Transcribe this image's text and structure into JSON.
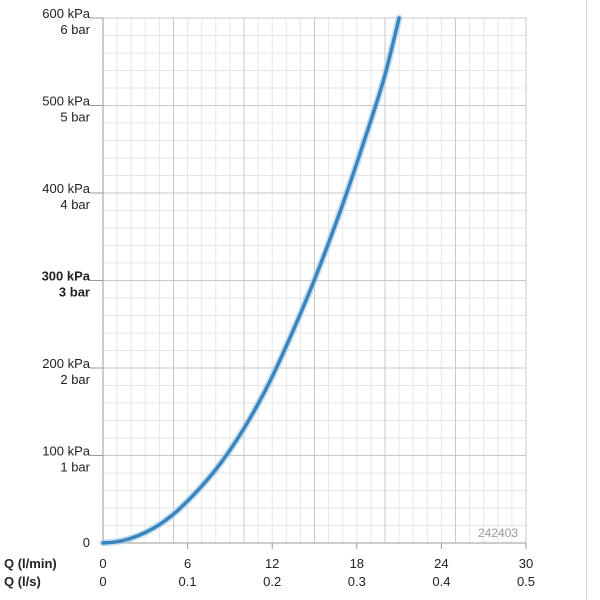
{
  "chart_data": {
    "type": "line",
    "figure_code": "242403",
    "x_axis_primary": {
      "label": "Q (l/min)",
      "ticks": [
        "0",
        "6",
        "12",
        "18",
        "24",
        "30"
      ],
      "range": [
        0,
        30
      ]
    },
    "x_axis_secondary": {
      "label": "Q (l/s)",
      "ticks": [
        "0",
        "0.1",
        "0.2",
        "0.3",
        "0.4",
        "0.5"
      ]
    },
    "y_axis": {
      "range": [
        0,
        600
      ],
      "ticks": [
        {
          "value": 0,
          "kpa": "0",
          "bar": "",
          "bold": false
        },
        {
          "value": 100,
          "kpa": "100 kPa",
          "bar": "1 bar",
          "bold": false
        },
        {
          "value": 200,
          "kpa": "200 kPa",
          "bar": "2 bar",
          "bold": false
        },
        {
          "value": 300,
          "kpa": "300 kPa",
          "bar": "3 bar",
          "bold": true
        },
        {
          "value": 400,
          "kpa": "400 kPa",
          "bar": "4 bar",
          "bold": false
        },
        {
          "value": 500,
          "kpa": "500 kPa",
          "bar": "5 bar",
          "bold": false
        },
        {
          "value": 600,
          "kpa": "600 kPa",
          "bar": "6 bar",
          "bold": false
        }
      ]
    },
    "grid": true,
    "series": [
      {
        "color": "#3a85bd",
        "x": [
          0,
          1,
          2,
          3,
          4,
          5,
          6,
          7,
          8,
          9,
          10,
          11,
          12,
          13,
          14,
          15,
          16,
          17,
          18,
          19,
          20,
          21
        ],
        "y": [
          0,
          1.5,
          5.5,
          12,
          21,
          33,
          48,
          65,
          84,
          106,
          131,
          159,
          190,
          225,
          262,
          301,
          343,
          387,
          434,
          483,
          535,
          600
        ]
      }
    ]
  }
}
